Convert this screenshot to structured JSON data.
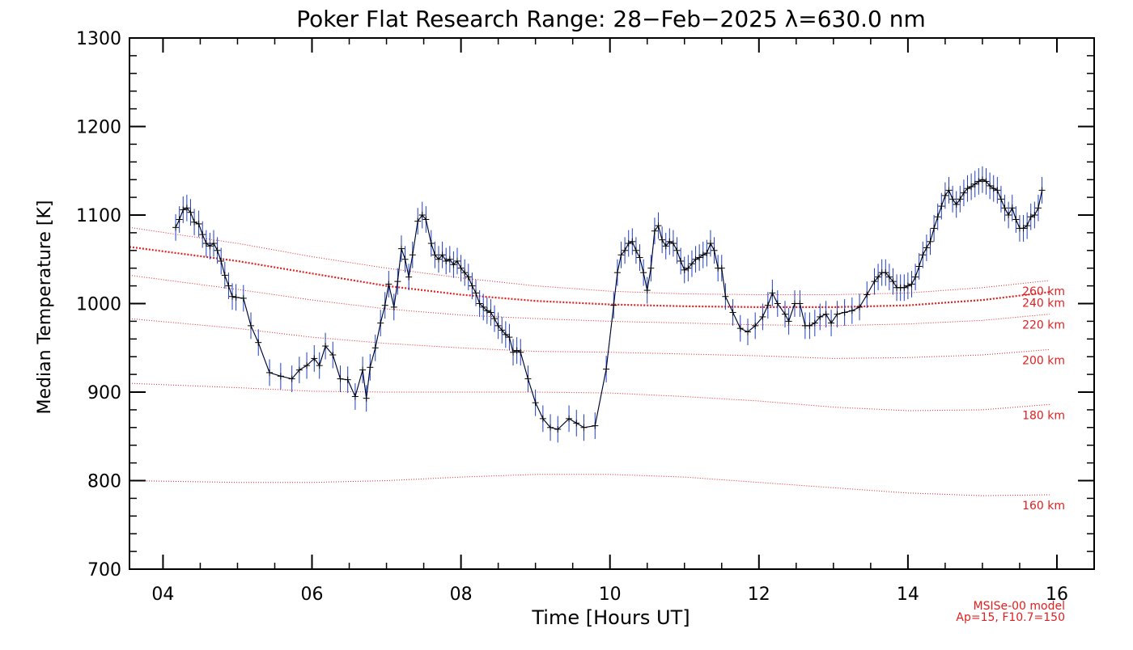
{
  "chart_data": {
    "type": "line",
    "title": "Poker Flat Research Range: 28−Feb−2025 λ=630.0 nm",
    "xlabel": "Time [Hours UT]",
    "ylabel": "Median Temperature [K]",
    "xlim": [
      3.55,
      16.5
    ],
    "ylim": [
      700,
      1300
    ],
    "x_ticks": [
      4,
      6,
      8,
      10,
      12,
      14,
      16
    ],
    "x_tick_labels": [
      "04",
      "06",
      "08",
      "10",
      "12",
      "14",
      "16"
    ],
    "y_ticks": [
      700,
      800,
      900,
      1000,
      1100,
      1200,
      1300
    ],
    "y_tick_labels": [
      "700",
      "800",
      "900",
      "1000",
      "1100",
      "1200",
      "1300"
    ],
    "grid": false,
    "colors": {
      "data": "#000000",
      "error": "#1f3fbf",
      "model": "#e02020"
    },
    "series": [
      {
        "kind": "measurement",
        "error_bar": 15,
        "points": [
          [
            4.17,
            1086
          ],
          [
            4.22,
            1095
          ],
          [
            4.27,
            1106
          ],
          [
            4.32,
            1108
          ],
          [
            4.37,
            1103
          ],
          [
            4.42,
            1092
          ],
          [
            4.48,
            1090
          ],
          [
            4.53,
            1078
          ],
          [
            4.58,
            1068
          ],
          [
            4.63,
            1065
          ],
          [
            4.68,
            1068
          ],
          [
            4.73,
            1060
          ],
          [
            4.78,
            1048
          ],
          [
            4.83,
            1032
          ],
          [
            4.88,
            1020
          ],
          [
            4.93,
            1008
          ],
          [
            4.98,
            1007
          ],
          [
            5.08,
            1006
          ],
          [
            5.18,
            975
          ],
          [
            5.28,
            956
          ],
          [
            5.43,
            922
          ],
          [
            5.58,
            918
          ],
          [
            5.73,
            915
          ],
          [
            5.83,
            925
          ],
          [
            5.93,
            930
          ],
          [
            6.03,
            938
          ],
          [
            6.1,
            930
          ],
          [
            6.18,
            952
          ],
          [
            6.28,
            942
          ],
          [
            6.38,
            915
          ],
          [
            6.48,
            914
          ],
          [
            6.58,
            895
          ],
          [
            6.68,
            925
          ],
          [
            6.73,
            893
          ],
          [
            6.78,
            928
          ],
          [
            6.85,
            950
          ],
          [
            6.92,
            978
          ],
          [
            6.98,
            998
          ],
          [
            7.03,
            1022
          ],
          [
            7.1,
            996
          ],
          [
            7.15,
            1025
          ],
          [
            7.2,
            1062
          ],
          [
            7.25,
            1050
          ],
          [
            7.3,
            1030
          ],
          [
            7.35,
            1055
          ],
          [
            7.42,
            1093
          ],
          [
            7.48,
            1100
          ],
          [
            7.53,
            1095
          ],
          [
            7.6,
            1068
          ],
          [
            7.65,
            1055
          ],
          [
            7.7,
            1050
          ],
          [
            7.75,
            1055
          ],
          [
            7.8,
            1048
          ],
          [
            7.85,
            1050
          ],
          [
            7.9,
            1044
          ],
          [
            7.95,
            1048
          ],
          [
            8.0,
            1040
          ],
          [
            8.05,
            1035
          ],
          [
            8.1,
            1030
          ],
          [
            8.15,
            1020
          ],
          [
            8.2,
            1012
          ],
          [
            8.25,
            1000
          ],
          [
            8.3,
            996
          ],
          [
            8.35,
            992
          ],
          [
            8.4,
            990
          ],
          [
            8.45,
            983
          ],
          [
            8.5,
            975
          ],
          [
            8.55,
            970
          ],
          [
            8.6,
            965
          ],
          [
            8.65,
            962
          ],
          [
            8.7,
            945
          ],
          [
            8.75,
            947
          ],
          [
            8.8,
            945
          ],
          [
            8.9,
            915
          ],
          [
            9.0,
            888
          ],
          [
            9.1,
            870
          ],
          [
            9.2,
            860
          ],
          [
            9.3,
            858
          ],
          [
            9.45,
            870
          ],
          [
            9.55,
            865
          ],
          [
            9.65,
            860
          ],
          [
            9.8,
            862
          ],
          [
            9.95,
            926
          ],
          [
            10.05,
            998
          ],
          [
            10.1,
            1035
          ],
          [
            10.15,
            1055
          ],
          [
            10.2,
            1060
          ],
          [
            10.25,
            1068
          ],
          [
            10.3,
            1070
          ],
          [
            10.35,
            1060
          ],
          [
            10.4,
            1052
          ],
          [
            10.45,
            1035
          ],
          [
            10.5,
            1015
          ],
          [
            10.55,
            1040
          ],
          [
            10.6,
            1082
          ],
          [
            10.65,
            1088
          ],
          [
            10.7,
            1072
          ],
          [
            10.75,
            1065
          ],
          [
            10.8,
            1070
          ],
          [
            10.85,
            1068
          ],
          [
            10.9,
            1060
          ],
          [
            10.95,
            1048
          ],
          [
            11.0,
            1038
          ],
          [
            11.05,
            1040
          ],
          [
            11.1,
            1045
          ],
          [
            11.15,
            1050
          ],
          [
            11.2,
            1052
          ],
          [
            11.25,
            1055
          ],
          [
            11.3,
            1057
          ],
          [
            11.35,
            1068
          ],
          [
            11.4,
            1060
          ],
          [
            11.45,
            1040
          ],
          [
            11.5,
            1040
          ],
          [
            11.55,
            1008
          ],
          [
            11.65,
            990
          ],
          [
            11.75,
            972
          ],
          [
            11.85,
            968
          ],
          [
            11.95,
            975
          ],
          [
            12.05,
            985
          ],
          [
            12.12,
            998
          ],
          [
            12.18,
            1012
          ],
          [
            12.25,
            1000
          ],
          [
            12.35,
            988
          ],
          [
            12.4,
            980
          ],
          [
            12.48,
            1000
          ],
          [
            12.55,
            1000
          ],
          [
            12.62,
            975
          ],
          [
            12.68,
            975
          ],
          [
            12.75,
            978
          ],
          [
            12.82,
            985
          ],
          [
            12.9,
            988
          ],
          [
            12.97,
            978
          ],
          [
            13.05,
            988
          ],
          [
            13.15,
            990
          ],
          [
            13.25,
            992
          ],
          [
            13.35,
            996
          ],
          [
            13.45,
            1010
          ],
          [
            13.55,
            1025
          ],
          [
            13.6,
            1030
          ],
          [
            13.65,
            1035
          ],
          [
            13.7,
            1035
          ],
          [
            13.75,
            1030
          ],
          [
            13.8,
            1025
          ],
          [
            13.85,
            1018
          ],
          [
            13.9,
            1018
          ],
          [
            13.95,
            1018
          ],
          [
            14.0,
            1020
          ],
          [
            14.05,
            1022
          ],
          [
            14.1,
            1030
          ],
          [
            14.15,
            1042
          ],
          [
            14.2,
            1055
          ],
          [
            14.25,
            1063
          ],
          [
            14.3,
            1070
          ],
          [
            14.35,
            1085
          ],
          [
            14.4,
            1098
          ],
          [
            14.45,
            1110
          ],
          [
            14.5,
            1122
          ],
          [
            14.55,
            1128
          ],
          [
            14.6,
            1118
          ],
          [
            14.65,
            1112
          ],
          [
            14.7,
            1118
          ],
          [
            14.75,
            1125
          ],
          [
            14.8,
            1130
          ],
          [
            14.85,
            1132
          ],
          [
            14.9,
            1135
          ],
          [
            14.95,
            1138
          ],
          [
            15.0,
            1140
          ],
          [
            15.05,
            1138
          ],
          [
            15.1,
            1133
          ],
          [
            15.15,
            1130
          ],
          [
            15.2,
            1128
          ],
          [
            15.25,
            1118
          ],
          [
            15.3,
            1108
          ],
          [
            15.35,
            1100
          ],
          [
            15.4,
            1108
          ],
          [
            15.45,
            1095
          ],
          [
            15.5,
            1085
          ],
          [
            15.55,
            1085
          ],
          [
            15.6,
            1088
          ],
          [
            15.65,
            1098
          ],
          [
            15.7,
            1100
          ],
          [
            15.75,
            1108
          ],
          [
            15.8,
            1128
          ]
        ]
      },
      {
        "name": "160 km",
        "kind": "model",
        "bold": false,
        "x": [
          3.55,
          5.0,
          6.0,
          7.0,
          8.0,
          9.0,
          10.0,
          11.0,
          12.0,
          13.0,
          14.0,
          15.0,
          15.9
        ],
        "y": [
          800,
          798,
          798,
          800,
          804,
          807,
          807,
          804,
          798,
          792,
          786,
          783,
          784
        ]
      },
      {
        "name": "180 km",
        "kind": "model",
        "bold": false,
        "x": [
          3.55,
          5.0,
          6.0,
          7.0,
          8.0,
          9.0,
          10.0,
          11.0,
          12.0,
          13.0,
          14.0,
          15.0,
          15.9
        ],
        "y": [
          910,
          905,
          901,
          900,
          900,
          900,
          899,
          895,
          890,
          883,
          879,
          880,
          886
        ]
      },
      {
        "name": "200 km",
        "kind": "model",
        "bold": false,
        "x": [
          3.55,
          5.0,
          6.0,
          7.0,
          8.0,
          9.0,
          10.0,
          11.0,
          12.0,
          13.0,
          14.0,
          15.0,
          15.9
        ],
        "y": [
          983,
          972,
          962,
          955,
          950,
          946,
          945,
          943,
          941,
          938,
          939,
          942,
          948
        ]
      },
      {
        "name": "220 km",
        "kind": "model",
        "bold": false,
        "x": [
          3.55,
          5.0,
          6.0,
          7.0,
          8.0,
          9.0,
          10.0,
          11.0,
          12.0,
          13.0,
          14.0,
          15.0,
          15.9
        ],
        "y": [
          1032,
          1016,
          1004,
          994,
          987,
          983,
          980,
          978,
          976,
          975,
          977,
          981,
          988
        ]
      },
      {
        "name": "240 km",
        "kind": "model",
        "bold": true,
        "x": [
          3.55,
          5.0,
          6.0,
          7.0,
          8.0,
          9.0,
          10.0,
          11.0,
          12.0,
          13.0,
          14.0,
          15.0,
          15.9
        ],
        "y": [
          1064,
          1048,
          1034,
          1020,
          1010,
          1003,
          999,
          997,
          996,
          996,
          998,
          1004,
          1013
        ]
      },
      {
        "name": "260 km",
        "kind": "model",
        "bold": false,
        "x": [
          3.55,
          5.0,
          6.0,
          7.0,
          8.0,
          9.0,
          10.0,
          11.0,
          12.0,
          13.0,
          14.0,
          15.0,
          15.9
        ],
        "y": [
          1086,
          1068,
          1053,
          1040,
          1029,
          1020,
          1014,
          1011,
          1010,
          1010,
          1012,
          1018,
          1026
        ]
      }
    ],
    "annotations": [
      "MSISe-00 model",
      "Ap=15, F10.7=150"
    ]
  }
}
